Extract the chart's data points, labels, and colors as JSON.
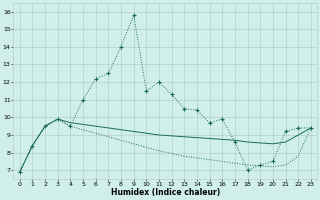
{
  "xlabel": "Humidex (Indice chaleur)",
  "bg_color": "#d0eeea",
  "grid_color": "#b0c8c4",
  "line_color": "#1a6b5a",
  "xlim": [
    -0.5,
    23.5
  ],
  "ylim": [
    6.5,
    16.5
  ],
  "xticks": [
    0,
    1,
    2,
    3,
    4,
    5,
    6,
    7,
    8,
    9,
    10,
    11,
    12,
    13,
    14,
    15,
    16,
    17,
    18,
    19,
    20,
    21,
    22,
    23
  ],
  "yticks": [
    7,
    8,
    9,
    10,
    11,
    12,
    13,
    14,
    15,
    16
  ],
  "series1_x": [
    0,
    1,
    2,
    3,
    4,
    5,
    6,
    7,
    8,
    9,
    10,
    11,
    12,
    13,
    14,
    15,
    16,
    17,
    18,
    19,
    20,
    21,
    22,
    23
  ],
  "series1_y": [
    6.9,
    8.4,
    9.5,
    9.9,
    9.5,
    11.0,
    12.2,
    12.5,
    14.0,
    15.8,
    11.5,
    12.0,
    11.3,
    10.5,
    10.4,
    9.7,
    9.9,
    8.6,
    7.0,
    7.3,
    7.5,
    9.2,
    9.4,
    9.4
  ],
  "series2_x": [
    0,
    1,
    2,
    3,
    4,
    5,
    6,
    7,
    8,
    9,
    10,
    11,
    12,
    13,
    14,
    15,
    16,
    17,
    18,
    19,
    20,
    21,
    22,
    23
  ],
  "series2_y": [
    6.9,
    8.4,
    9.5,
    9.9,
    9.7,
    9.6,
    9.5,
    9.4,
    9.3,
    9.2,
    9.1,
    9.0,
    8.95,
    8.9,
    8.85,
    8.8,
    8.75,
    8.7,
    8.6,
    8.55,
    8.5,
    8.6,
    9.0,
    9.4
  ],
  "series3_x": [
    0,
    1,
    2,
    3,
    4,
    5,
    6,
    7,
    8,
    9,
    10,
    11,
    12,
    13,
    14,
    15,
    16,
    17,
    18,
    19,
    20,
    21,
    22,
    23
  ],
  "series3_y": [
    6.9,
    8.4,
    9.5,
    9.9,
    9.5,
    9.3,
    9.1,
    8.9,
    8.7,
    8.5,
    8.3,
    8.1,
    7.95,
    7.8,
    7.7,
    7.6,
    7.5,
    7.4,
    7.3,
    7.25,
    7.2,
    7.3,
    7.8,
    9.4
  ]
}
